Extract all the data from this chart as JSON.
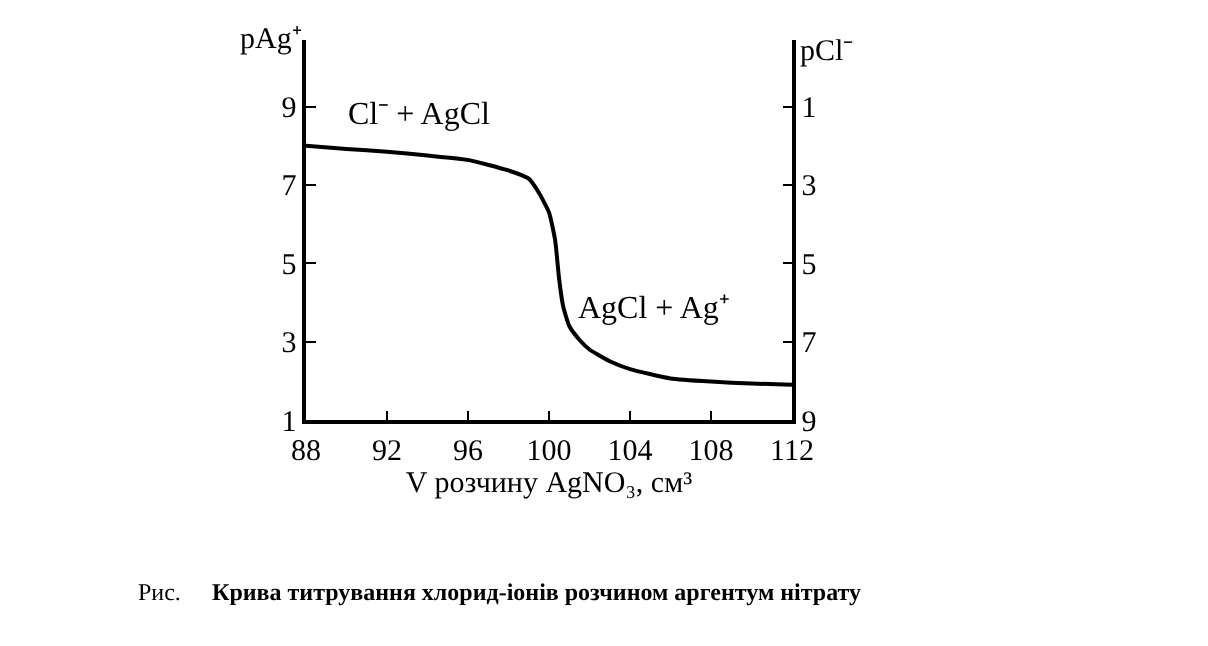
{
  "chart_data": {
    "type": "line",
    "x": [
      88,
      90,
      92,
      94,
      96,
      98,
      99,
      99.5,
      100,
      100.3,
      100.5,
      100.7,
      101,
      101.5,
      102,
      103,
      104,
      106,
      108,
      110,
      112
    ],
    "series": [
      {
        "color": "#000000",
        "values": [
          8.0,
          7.92,
          7.85,
          7.75,
          7.64,
          7.37,
          7.16,
          6.8,
          6.3,
          5.6,
          4.6,
          3.9,
          3.4,
          3.05,
          2.8,
          2.5,
          2.3,
          2.06,
          1.98,
          1.93,
          1.9
        ]
      }
    ],
    "xlabel": "V розчину AgNO₃, см³",
    "ylabel": "pAg⁺",
    "y2label": "pCl⁻",
    "xlim": [
      88,
      112
    ],
    "xticks": [
      88,
      92,
      96,
      100,
      104,
      108,
      112
    ],
    "ylim": [
      1,
      10.7
    ],
    "yticks": [
      1,
      3,
      5,
      7,
      9
    ],
    "y2lim": [
      9,
      -0.7
    ],
    "y2ticks": [
      1,
      3,
      5,
      7,
      9
    ],
    "marker": "none",
    "line_style": "solid",
    "annotations": [
      "Cl⁻ + AgCl",
      "AgCl + Ag⁺",
      "Рис.",
      "Крива титрування хлорид-іонів розчином аргентум нітрату"
    ]
  }
}
